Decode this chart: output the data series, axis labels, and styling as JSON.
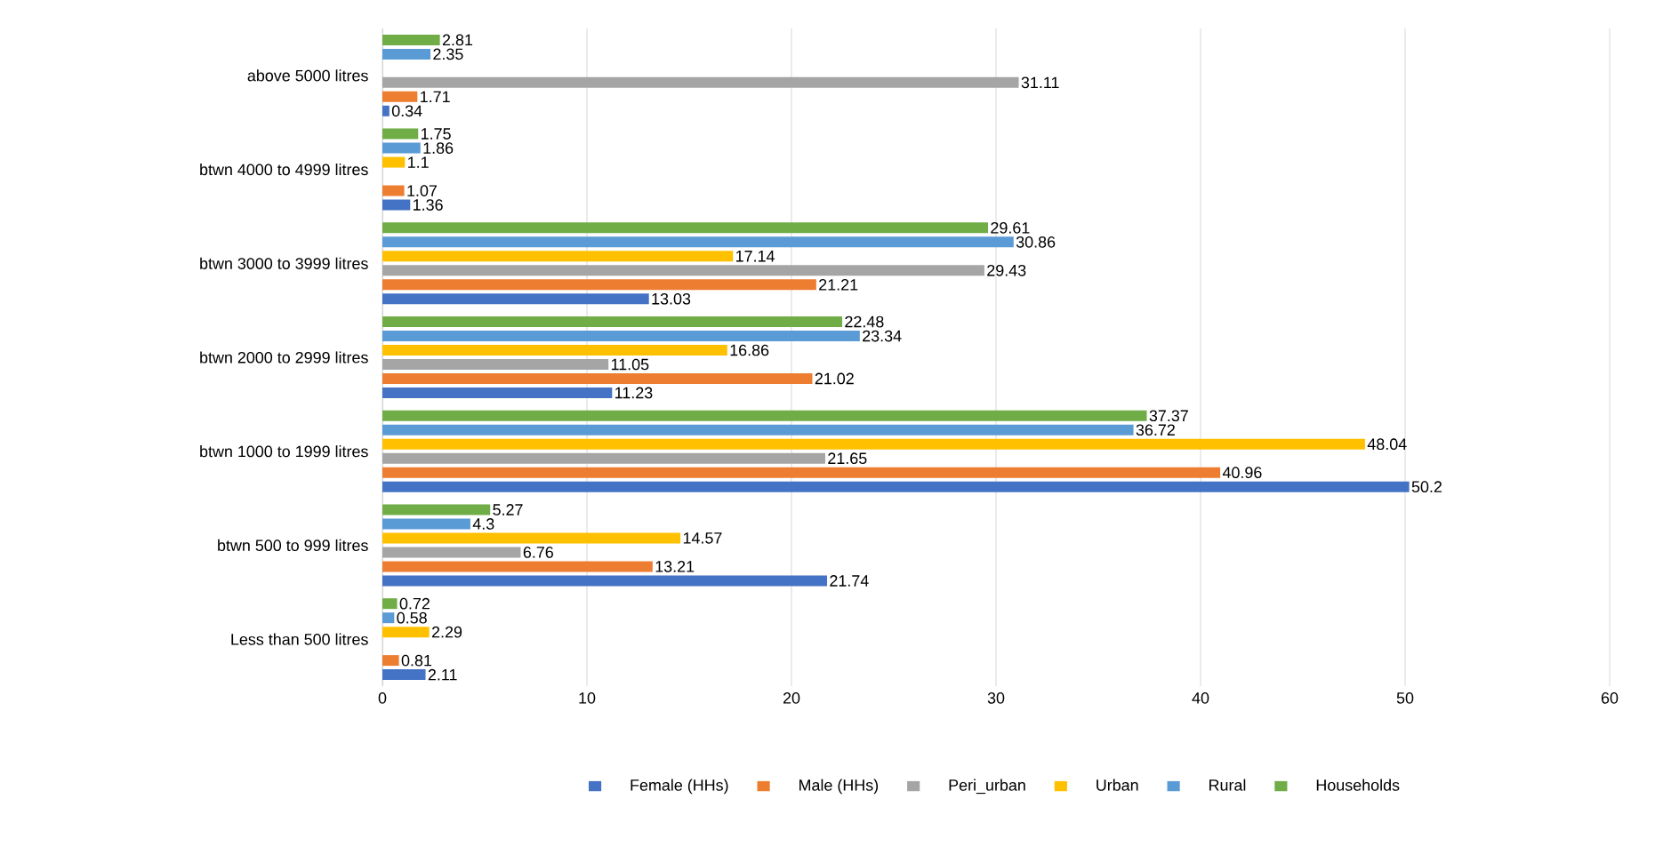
{
  "chart_data": {
    "type": "bar",
    "orientation": "horizontal",
    "categories": [
      "above 5000 litres",
      "btwn 4000 to 4999 litres",
      "btwn 3000 to 3999 litres",
      "btwn 2000 to 2999 litres",
      "btwn 1000 to 1999 litres",
      "btwn 500 to 999 litres",
      "Less than 500 litres"
    ],
    "series": [
      {
        "name": "Female (HHs)",
        "color": "#4472c4",
        "values": [
          0.34,
          1.36,
          13.03,
          11.23,
          50.2,
          21.74,
          2.11
        ]
      },
      {
        "name": "Male (HHs)",
        "color": "#ed7d31",
        "values": [
          1.71,
          1.07,
          21.21,
          21.02,
          40.96,
          13.21,
          0.81
        ]
      },
      {
        "name": "Peri_urban",
        "color": "#a5a5a5",
        "values": [
          31.11,
          null,
          29.43,
          11.05,
          21.65,
          6.76,
          null
        ]
      },
      {
        "name": "Urban",
        "color": "#ffc000",
        "values": [
          null,
          1.1,
          17.14,
          16.86,
          48.04,
          14.57,
          2.29
        ]
      },
      {
        "name": "Rural",
        "color": "#5b9bd5",
        "values": [
          2.35,
          1.86,
          30.86,
          23.34,
          36.72,
          4.3,
          0.58
        ]
      },
      {
        "name": "Households",
        "color": "#70ad47",
        "values": [
          2.81,
          1.75,
          29.61,
          22.48,
          37.37,
          5.27,
          0.72
        ]
      }
    ],
    "xlim": [
      0,
      60
    ],
    "xticks": [
      0,
      10,
      20,
      30,
      40,
      50,
      60
    ],
    "grid": "x",
    "legend": "bottom",
    "data_labels": true
  }
}
